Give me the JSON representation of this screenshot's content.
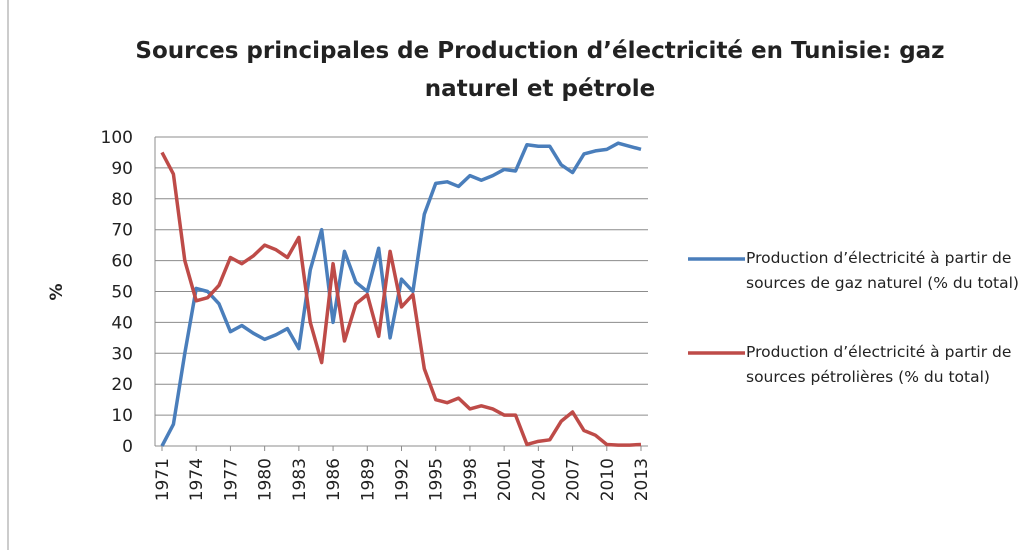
{
  "chart_data": {
    "type": "line",
    "title": "Sources principales de Production d’électricité en Tunisie: gaz naturel et pétrole",
    "y_label": "%",
    "x": [
      1971,
      1972,
      1973,
      1974,
      1975,
      1976,
      1977,
      1978,
      1979,
      1980,
      1981,
      1982,
      1983,
      1984,
      1985,
      1986,
      1987,
      1988,
      1989,
      1990,
      1991,
      1992,
      1993,
      1994,
      1995,
      1996,
      1997,
      1998,
      1999,
      2000,
      2001,
      2002,
      2003,
      2004,
      2005,
      2006,
      2007,
      2008,
      2009,
      2010,
      2011,
      2012,
      2013
    ],
    "series": [
      {
        "name": "Production d’électricité à partir de sources de gaz naturel (% du total)",
        "color": "#4a7ebb",
        "values": [
          0,
          7,
          30,
          51,
          50,
          46,
          37,
          39,
          36.5,
          34.5,
          36,
          38,
          31.5,
          57,
          70,
          40,
          63,
          53,
          50,
          64,
          35,
          54,
          50,
          75,
          85,
          85.5,
          84,
          87.5,
          86,
          87.5,
          89.5,
          89,
          97.5,
          97,
          97,
          91,
          88.5,
          94.5,
          95.5,
          96,
          98,
          97,
          96
        ]
      },
      {
        "name": "Production d’électricité à partir de sources pétrolières (% du total)",
        "color": "#be4b48",
        "values": [
          95,
          88,
          60,
          47,
          48,
          52,
          61,
          59,
          61.5,
          65,
          63.5,
          61,
          67.5,
          40,
          27,
          59,
          34,
          46,
          49,
          35.5,
          63,
          45,
          49,
          25,
          15,
          14,
          15.5,
          12,
          13,
          12,
          10,
          10,
          0.5,
          1.5,
          2,
          8,
          11,
          5,
          3.5,
          0.5,
          0.3,
          0.3,
          0.5
        ]
      }
    ],
    "xlim": [
      1971,
      2013
    ],
    "xticks": [
      1971,
      1974,
      1977,
      1980,
      1983,
      1986,
      1989,
      1992,
      1995,
      1998,
      2001,
      2004,
      2007,
      2010,
      2013
    ],
    "ylim": [
      0,
      100
    ],
    "yticks": [
      0,
      10,
      20,
      30,
      40,
      50,
      60,
      70,
      80,
      90,
      100
    ],
    "grid": true,
    "legend": "right"
  }
}
